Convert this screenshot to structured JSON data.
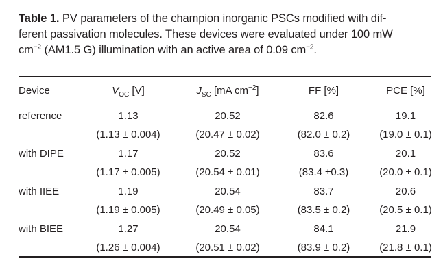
{
  "caption": {
    "label": "Table 1.",
    "line1": "PV parameters of the champion inorganic PSCs modified with dif-",
    "line2": "ferent passivation molecules. These devices were evaluated under 100 mW",
    "line3_a": "cm",
    "line3_sup": "−2",
    "line3_b": " (AM1.5 G) illumination with an active area of 0.09 cm",
    "line3_sup2": "−2",
    "line3_c": "."
  },
  "header": {
    "device": "Device",
    "voc_sym": "V",
    "voc_sub": "OC",
    "voc_unit": " [V]",
    "jsc_sym": "J",
    "jsc_sub": "SC",
    "jsc_unit_a": " [mA cm",
    "jsc_unit_sup": "−2",
    "jsc_unit_b": "]",
    "ff": "FF [%]",
    "pce": "PCE [%]"
  },
  "rows": [
    {
      "device": "reference",
      "voc": "1.13",
      "voc_avg": "(1.13 ± 0.004)",
      "jsc": "20.52",
      "jsc_avg": "(20.47 ± 0.02)",
      "ff": "82.6",
      "ff_avg": "(82.0 ± 0.2)",
      "pce": "19.1",
      "pce_avg": "(19.0 ± 0.1)"
    },
    {
      "device": "with DIPE",
      "voc": "1.17",
      "voc_avg": "(1.17 ± 0.005)",
      "jsc": "20.52",
      "jsc_avg": "(20.54 ± 0.01)",
      "ff": "83.6",
      "ff_avg": "(83.4 ±0.3)",
      "pce": "20.1",
      "pce_avg": "(20.0 ± 0.1)"
    },
    {
      "device": "with IIEE",
      "voc": "1.19",
      "voc_avg": "(1.19 ± 0.005)",
      "jsc": "20.54",
      "jsc_avg": "(20.49 ± 0.05)",
      "ff": "83.7",
      "ff_avg": "(83.5 ± 0.2)",
      "pce": "20.6",
      "pce_avg": "(20.5 ± 0.1)"
    },
    {
      "device": "with BIEE",
      "voc": "1.27",
      "voc_avg": "(1.26 ± 0.004)",
      "jsc": "20.54",
      "jsc_avg": "(20.51 ± 0.02)",
      "ff": "84.1",
      "ff_avg": "(83.9 ± 0.2)",
      "pce": "21.9",
      "pce_avg": "(21.8 ± 0.1)"
    }
  ]
}
